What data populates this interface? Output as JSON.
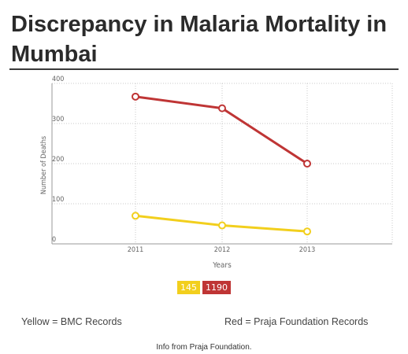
{
  "title": "Discrepancy in Malaria Mortality in Mumbai",
  "chart_data": {
    "type": "line",
    "categories": [
      "2011",
      "2012",
      "2013"
    ],
    "xlabel": "Years",
    "ylabel": "Number of Deaths",
    "ylim": [
      0,
      400
    ],
    "yticks": [
      0,
      100,
      200,
      300,
      400
    ],
    "grid": true,
    "series": [
      {
        "name": "145",
        "color": "#f2cf1d",
        "values": [
          70,
          46,
          31
        ]
      },
      {
        "name": "1190",
        "color": "#bf3535",
        "values": [
          367,
          338,
          200
        ]
      }
    ]
  },
  "legend": {
    "yellow": {
      "label": "145",
      "color": "#f2cf1d"
    },
    "red": {
      "label": "1190",
      "color": "#bf3535"
    }
  },
  "notes": {
    "left": "Yellow = BMC Records",
    "right": "Red = Praja Foundation Records"
  },
  "source": "Info from Praja Foundation."
}
